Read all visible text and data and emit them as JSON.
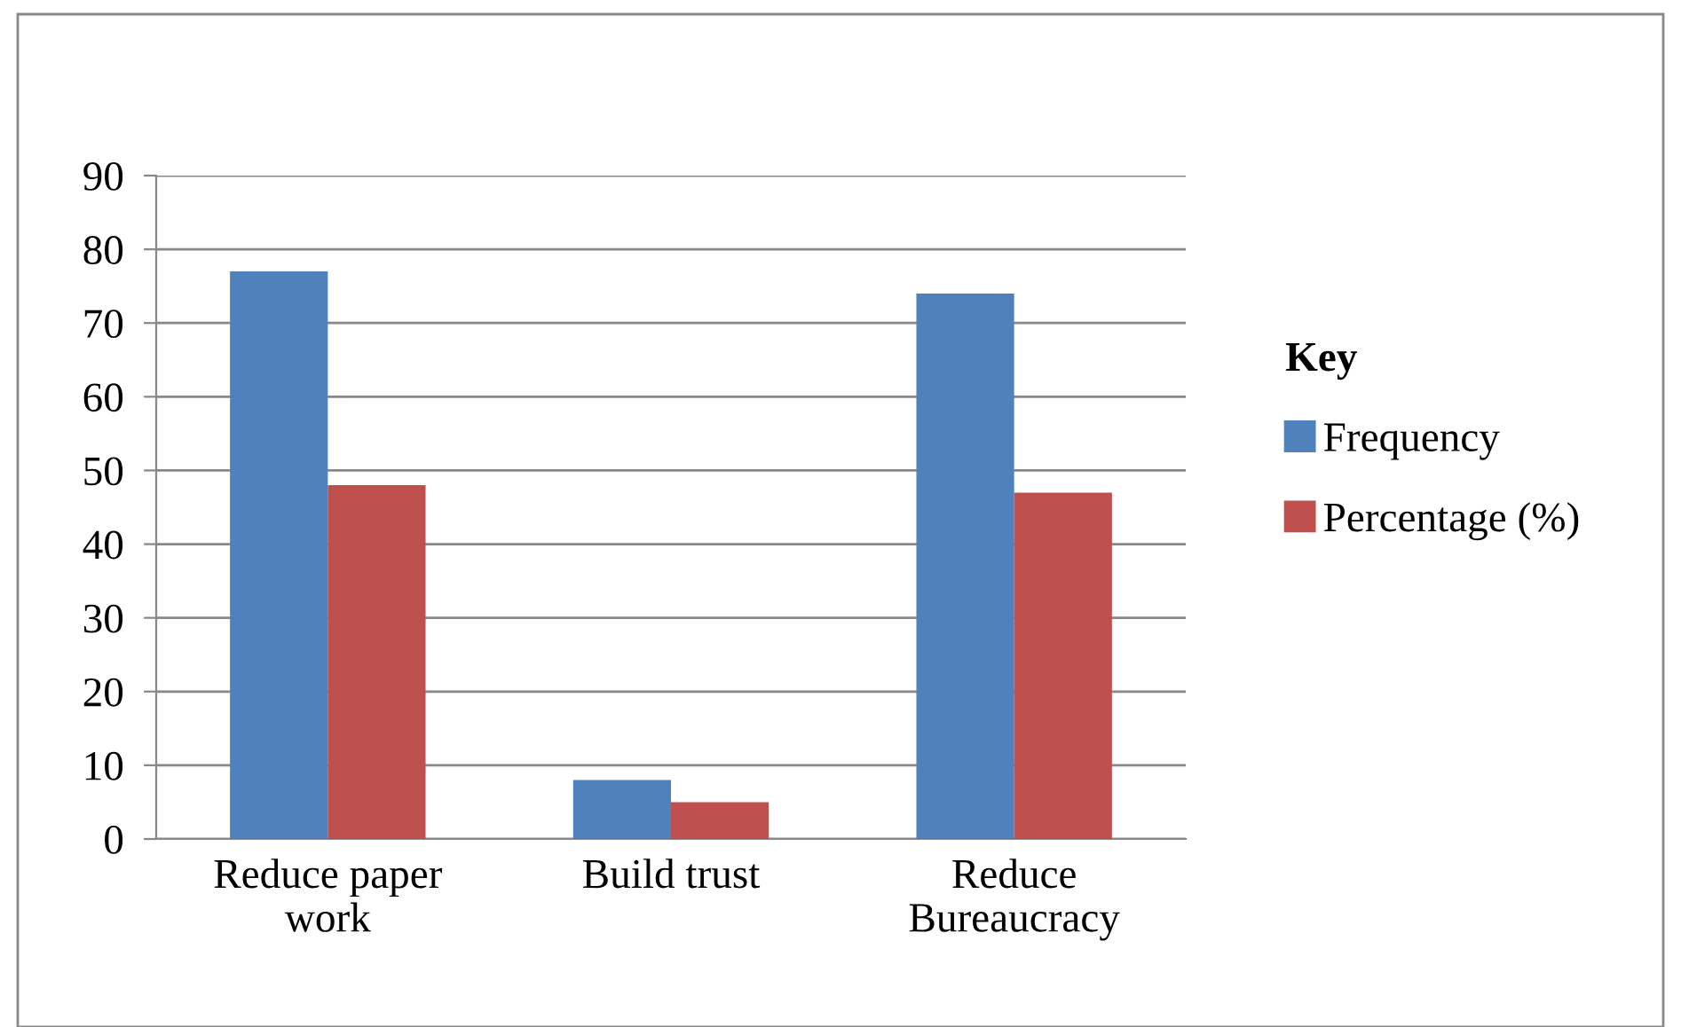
{
  "chart_data": {
    "type": "bar",
    "categories": [
      "Reduce paper\nwork",
      "Build trust",
      "Reduce\nBureaucracy"
    ],
    "series": [
      {
        "name": "Frequency",
        "color": "#4f81bd",
        "values": [
          77,
          8,
          74
        ]
      },
      {
        "name": "Percentage (%)",
        "color": "#c0504d",
        "values": [
          48,
          5,
          47
        ]
      }
    ],
    "legend_title": "Key",
    "legend": "right",
    "ylim": [
      0,
      90
    ],
    "yticks": [
      0,
      10,
      20,
      30,
      40,
      50,
      60,
      70,
      80,
      90
    ],
    "grid": "y"
  }
}
